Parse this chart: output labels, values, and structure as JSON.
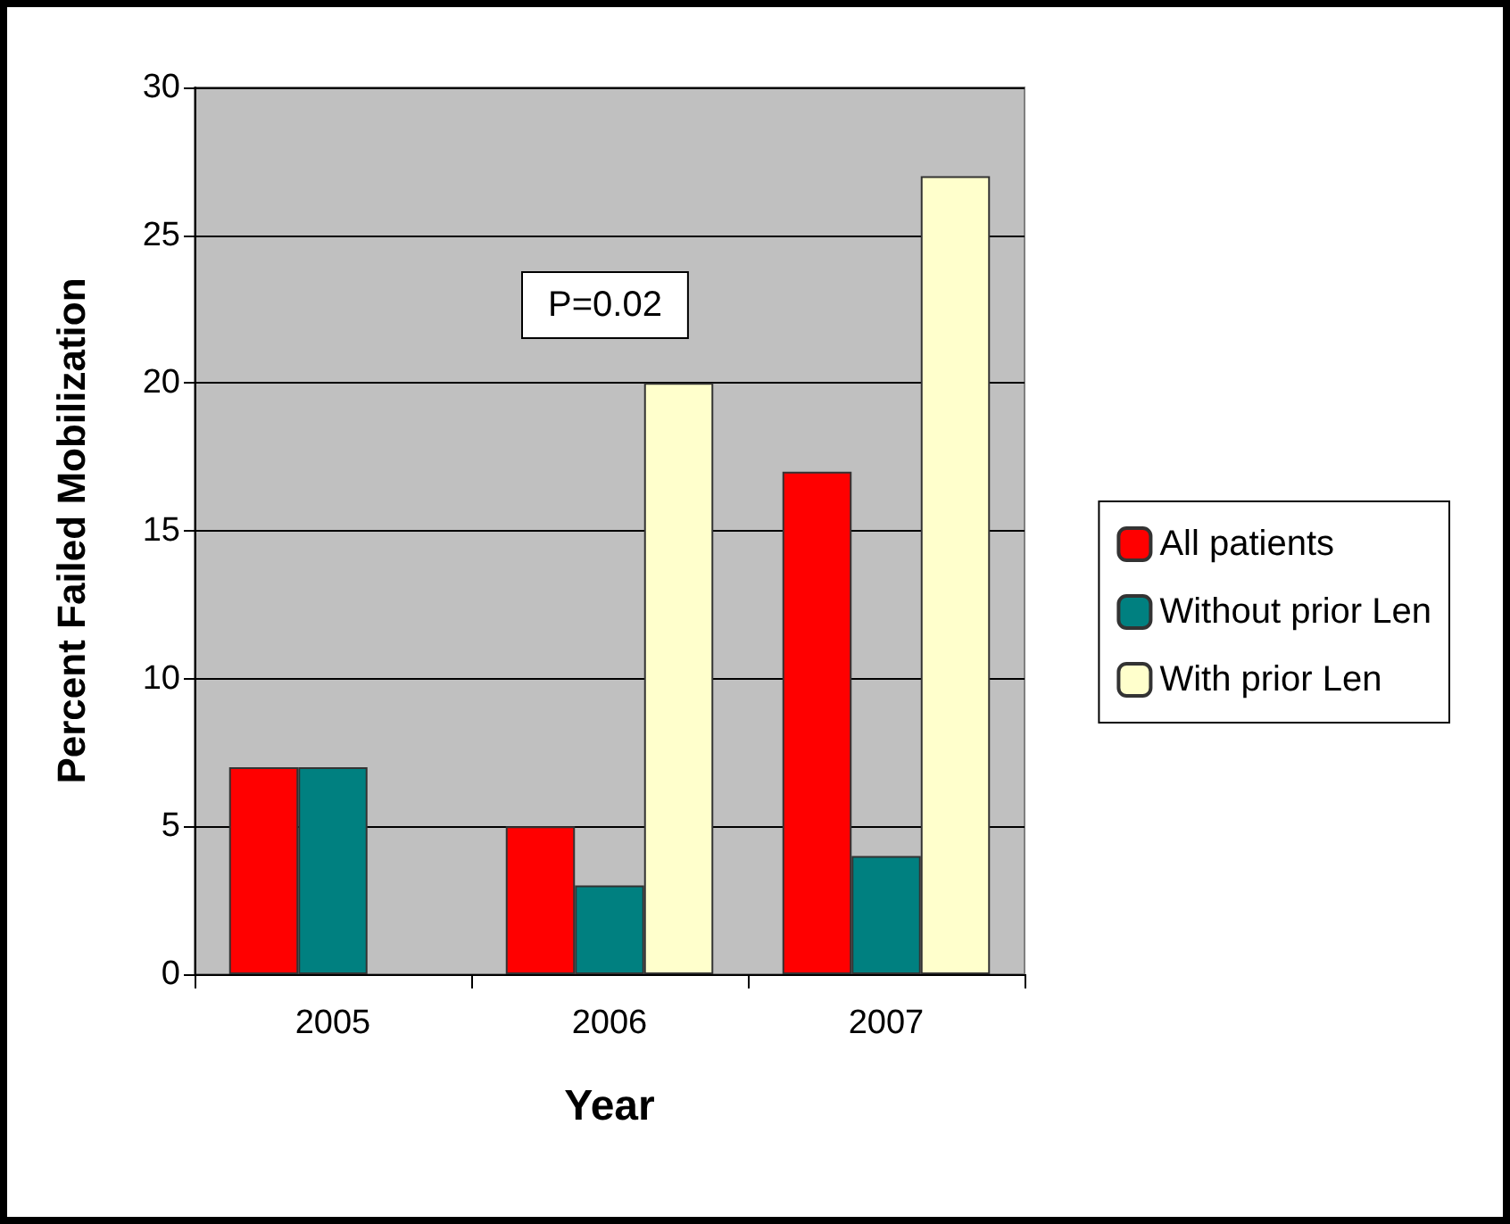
{
  "chart_data": {
    "type": "bar",
    "xlabel": "Year",
    "ylabel": "Percent Failed Mobilization",
    "categories": [
      "2005",
      "2006",
      "2007"
    ],
    "series": [
      {
        "name": "All patients",
        "color": "#ff0000",
        "values": [
          7,
          5,
          17
        ]
      },
      {
        "name": "Without prior Len",
        "color": "#008080",
        "values": [
          7,
          3,
          4
        ]
      },
      {
        "name": "With prior Len",
        "color": "#ffffcc",
        "values": [
          null,
          20,
          27
        ]
      }
    ],
    "ylim": [
      0,
      30
    ],
    "yticks": [
      0,
      5,
      10,
      15,
      20,
      25,
      30
    ],
    "grid": "y",
    "legend": "right",
    "annotations": [
      "P=0.02"
    ]
  }
}
